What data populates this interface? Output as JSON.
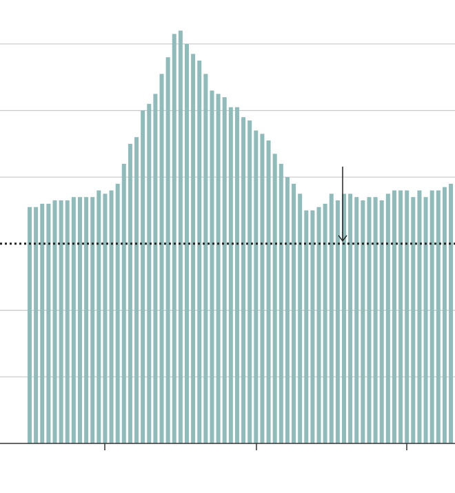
{
  "chart_data": {
    "type": "bar",
    "title": "",
    "xlabel": "",
    "ylabel": "",
    "ylim": [
      0,
      6
    ],
    "gridlines": [
      1,
      2,
      3,
      4,
      5,
      6
    ],
    "reference_line": 3,
    "arrow_at_index": 50,
    "colors": {
      "bar": "#8fbcbb",
      "grid": "#c8c8c8",
      "axis": "#333333",
      "reference": "#222222",
      "arrow": "#222222"
    },
    "values": [
      3.55,
      3.55,
      3.6,
      3.6,
      3.65,
      3.65,
      3.65,
      3.7,
      3.7,
      3.7,
      3.7,
      3.8,
      3.75,
      3.8,
      3.9,
      4.2,
      4.5,
      4.6,
      5.0,
      5.1,
      5.25,
      5.55,
      5.8,
      6.15,
      6.2,
      6.0,
      5.85,
      5.75,
      5.55,
      5.3,
      5.25,
      5.2,
      5.05,
      5.05,
      4.9,
      4.85,
      4.7,
      4.65,
      4.55,
      4.35,
      4.2,
      4.0,
      3.9,
      3.75,
      3.5,
      3.5,
      3.55,
      3.6,
      3.75,
      3.65,
      3.75,
      3.75,
      3.7,
      3.65,
      3.7,
      3.7,
      3.65,
      3.75,
      3.8,
      3.8,
      3.8,
      3.7,
      3.8,
      3.7,
      3.8,
      3.8,
      3.85,
      3.9
    ]
  }
}
